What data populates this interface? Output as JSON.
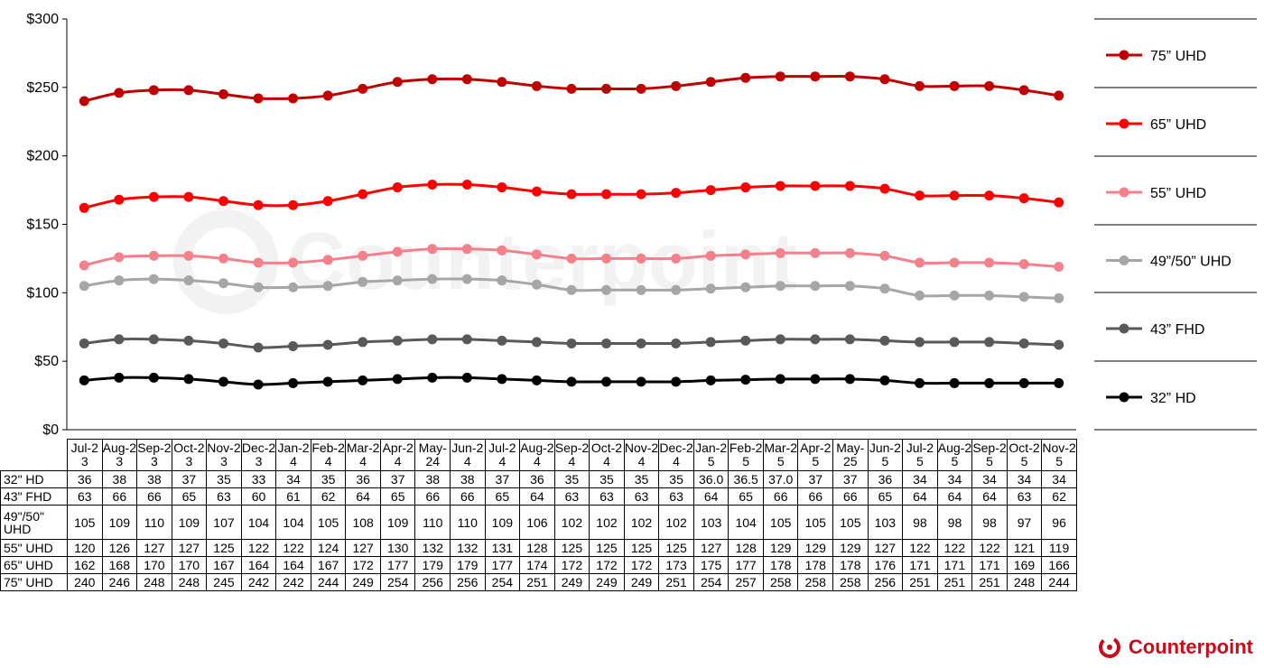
{
  "chart_data": {
    "type": "line",
    "title": "",
    "xlabel": "",
    "ylabel": "",
    "ylim": [
      0,
      300
    ],
    "yticks": [
      "$0",
      "$50",
      "$100",
      "$150",
      "$200",
      "$250",
      "$300"
    ],
    "categories": [
      "Jul-23",
      "Aug-23",
      "Sep-23",
      "Oct-23",
      "Nov-23",
      "Dec-23",
      "Jan-24",
      "Feb-24",
      "Mar-24",
      "Apr-24",
      "May-24",
      "Jun-24",
      "Jul-24",
      "Aug-24",
      "Sep-24",
      "Oct-24",
      "Nov-24",
      "Dec-24",
      "Jan-25",
      "Feb-25",
      "Mar-25",
      "Apr-25",
      "May-25",
      "Jun-25",
      "Jul-25",
      "Aug-25",
      "Sep-25",
      "Oct-25",
      "Nov-25"
    ],
    "legend_placement": "right",
    "series": [
      {
        "name": "75” UHD",
        "table_label": "75\" UHD",
        "color": "#c00000",
        "values": [
          240,
          246,
          248,
          248,
          245,
          242,
          242,
          244,
          249,
          254,
          256,
          256,
          254,
          251,
          249,
          249,
          249,
          251,
          254,
          257,
          258,
          258,
          258,
          256,
          251,
          251,
          251,
          248,
          244
        ],
        "display": [
          "240",
          "246",
          "248",
          "248",
          "245",
          "242",
          "242",
          "244",
          "249",
          "254",
          "256",
          "256",
          "254",
          "251",
          "249",
          "249",
          "249",
          "251",
          "254",
          "257",
          "258",
          "258",
          "258",
          "256",
          "251",
          "251",
          "251",
          "248",
          "244"
        ]
      },
      {
        "name": "65” UHD",
        "table_label": "65\" UHD",
        "color": "#ff0000",
        "values": [
          162,
          168,
          170,
          170,
          167,
          164,
          164,
          167,
          172,
          177,
          179,
          179,
          177,
          174,
          172,
          172,
          172,
          173,
          175,
          177,
          178,
          178,
          178,
          176,
          171,
          171,
          171,
          169,
          166
        ],
        "display": [
          "162",
          "168",
          "170",
          "170",
          "167",
          "164",
          "164",
          "167",
          "172",
          "177",
          "179",
          "179",
          "177",
          "174",
          "172",
          "172",
          "172",
          "173",
          "175",
          "177",
          "178",
          "178",
          "178",
          "176",
          "171",
          "171",
          "171",
          "169",
          "166"
        ]
      },
      {
        "name": "55” UHD",
        "table_label": "55\" UHD",
        "color": "#f4808c",
        "values": [
          120,
          126,
          127,
          127,
          125,
          122,
          122,
          124,
          127,
          130,
          132,
          132,
          131,
          128,
          125,
          125,
          125,
          125,
          127,
          128,
          129,
          129,
          129,
          127,
          122,
          122,
          122,
          121,
          119
        ],
        "display": [
          "120",
          "126",
          "127",
          "127",
          "125",
          "122",
          "122",
          "124",
          "127",
          "130",
          "132",
          "132",
          "131",
          "128",
          "125",
          "125",
          "125",
          "125",
          "127",
          "128",
          "129",
          "129",
          "129",
          "127",
          "122",
          "122",
          "122",
          "121",
          "119"
        ]
      },
      {
        "name": "49”/50” UHD",
        "table_label": "49\"/50\" UHD",
        "color": "#a6a6a6",
        "values": [
          105,
          109,
          110,
          109,
          107,
          104,
          104,
          105,
          108,
          109,
          110,
          110,
          109,
          106,
          102,
          102,
          102,
          102,
          103,
          104,
          105,
          105,
          105,
          103,
          98,
          98,
          98,
          97,
          96
        ],
        "display": [
          "105",
          "109",
          "110",
          "109",
          "107",
          "104",
          "104",
          "105",
          "108",
          "109",
          "110",
          "110",
          "109",
          "106",
          "102",
          "102",
          "102",
          "102",
          "103",
          "104",
          "105",
          "105",
          "105",
          "103",
          "98",
          "98",
          "98",
          "97",
          "96"
        ]
      },
      {
        "name": "43” FHD",
        "table_label": "43\" FHD",
        "color": "#595959",
        "values": [
          63,
          66,
          66,
          65,
          63,
          60,
          61,
          62,
          64,
          65,
          66,
          66,
          65,
          64,
          63,
          63,
          63,
          63,
          64,
          65,
          66,
          66,
          66,
          65,
          64,
          64,
          64,
          63,
          62
        ],
        "display": [
          "63",
          "66",
          "66",
          "65",
          "63",
          "60",
          "61",
          "62",
          "64",
          "65",
          "66",
          "66",
          "65",
          "64",
          "63",
          "63",
          "63",
          "63",
          "64",
          "65",
          "66",
          "66",
          "66",
          "65",
          "64",
          "64",
          "64",
          "63",
          "62"
        ]
      },
      {
        "name": "32” HD",
        "table_label": "32\" HD",
        "color": "#000000",
        "values": [
          36,
          38,
          38,
          37,
          35,
          33,
          34,
          35,
          36,
          37,
          38,
          38,
          37,
          36,
          35,
          35,
          35,
          35,
          36,
          36.5,
          37,
          37,
          37,
          36,
          34,
          34,
          34,
          34,
          34
        ],
        "display": [
          "36",
          "38",
          "38",
          "37",
          "35",
          "33",
          "34",
          "35",
          "36",
          "37",
          "38",
          "38",
          "37",
          "36",
          "35",
          "35",
          "35",
          "35",
          "36.0",
          "36.5",
          "37.0",
          "37",
          "37",
          "36",
          "34",
          "34",
          "34",
          "34",
          "34"
        ]
      }
    ],
    "table_row_order": [
      5,
      4,
      3,
      2,
      1,
      0
    ]
  },
  "logo": {
    "text": "Counterpoint",
    "color": "#cc0a1c"
  }
}
